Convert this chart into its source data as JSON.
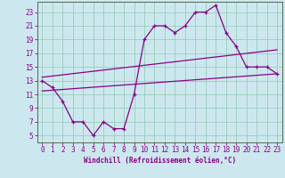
{
  "xlabel": "Windchill (Refroidissement éolien,°C)",
  "bg_color": "#cce8ee",
  "line_color": "#880088",
  "grid_color": "#99ccbb",
  "spine_color": "#556655",
  "xlim": [
    -0.5,
    23.5
  ],
  "ylim": [
    4,
    24.5
  ],
  "xticks": [
    0,
    1,
    2,
    3,
    4,
    5,
    6,
    7,
    8,
    9,
    10,
    11,
    12,
    13,
    14,
    15,
    16,
    17,
    18,
    19,
    20,
    21,
    22,
    23
  ],
  "yticks": [
    5,
    7,
    9,
    11,
    13,
    15,
    17,
    19,
    21,
    23
  ],
  "line1_x": [
    0,
    1,
    2,
    3,
    4,
    5,
    6,
    7,
    8,
    9,
    10,
    11,
    12,
    13,
    14,
    15,
    16,
    17,
    18,
    19,
    20,
    21,
    22,
    23
  ],
  "line1_y": [
    13,
    12,
    10,
    7,
    7,
    5,
    7,
    6,
    6,
    11,
    19,
    21,
    21,
    20,
    21,
    23,
    23,
    24,
    20,
    18,
    15,
    15,
    15,
    14
  ],
  "line2_x": [
    0,
    23
  ],
  "line2_y": [
    13.5,
    17.5
  ],
  "line3_x": [
    0,
    23
  ],
  "line3_y": [
    11.5,
    14.0
  ],
  "tick_fontsize": 5.5,
  "xlabel_fontsize": 5.5
}
